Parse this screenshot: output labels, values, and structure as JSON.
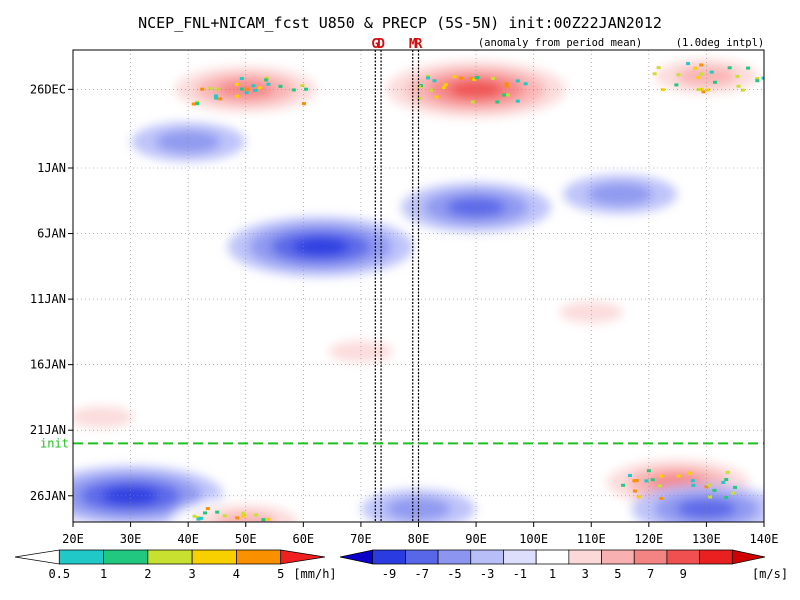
{
  "chart_data": {
    "type": "heatmap",
    "title": "NCEP_FNL+NICAM_fcst U850 & PRECP (5S-5N) init:00Z22JAN2012",
    "note_left": "(anomaly from period mean)",
    "note_right": "(1.0deg intpl)",
    "xlim": [
      20,
      140
    ],
    "x_ticks": [
      {
        "value": 20,
        "label": "20E"
      },
      {
        "value": 30,
        "label": "30E"
      },
      {
        "value": 40,
        "label": "40E"
      },
      {
        "value": 50,
        "label": "50E"
      },
      {
        "value": 60,
        "label": "60E"
      },
      {
        "value": 70,
        "label": "70E"
      },
      {
        "value": 80,
        "label": "80E"
      },
      {
        "value": 90,
        "label": "90E"
      },
      {
        "value": 100,
        "label": "100E"
      },
      {
        "value": 110,
        "label": "110E"
      },
      {
        "value": 120,
        "label": "120E"
      },
      {
        "value": 130,
        "label": "130E"
      },
      {
        "value": 140,
        "label": "140E"
      }
    ],
    "y_range_dates": [
      "2011-12-23",
      "2012-01-28"
    ],
    "y_ticks": [
      {
        "date": "2011-12-26",
        "label": "26DEC"
      },
      {
        "date": "2012-01-01",
        "label": "1JAN"
      },
      {
        "date": "2012-01-06",
        "label": "6JAN"
      },
      {
        "date": "2012-01-11",
        "label": "11JAN"
      },
      {
        "date": "2012-01-16",
        "label": "16JAN"
      },
      {
        "date": "2012-01-21",
        "label": "21JAN"
      },
      {
        "date": "2012-01-26",
        "label": "26JAN"
      }
    ],
    "markers": [
      {
        "label": "G",
        "lon": 72.5
      },
      {
        "label": "D",
        "lon": 73.5
      },
      {
        "label": "M",
        "lon": 79.0
      },
      {
        "label": "R",
        "lon": 80.0
      }
    ],
    "init_line": {
      "label": "init",
      "date": "2012-01-22",
      "color": "#20c020"
    },
    "u850_anomaly_features": [
      {
        "lon": 50,
        "date": "2011-12-26",
        "value": 7
      },
      {
        "lon": 90,
        "date": "2011-12-26",
        "value": 9
      },
      {
        "lon": 130,
        "date": "2011-12-25",
        "value": 5
      },
      {
        "lon": 40,
        "date": "2011-12-30",
        "value": -3
      },
      {
        "lon": 90,
        "date": "2012-01-04",
        "value": -5
      },
      {
        "lon": 63,
        "date": "2012-01-07",
        "value": -7
      },
      {
        "lon": 115,
        "date": "2012-01-03",
        "value": -3
      },
      {
        "lon": 110,
        "date": "2012-01-12",
        "value": 3
      },
      {
        "lon": 70,
        "date": "2012-01-15",
        "value": 3
      },
      {
        "lon": 25,
        "date": "2012-01-20",
        "value": 3
      },
      {
        "lon": 125,
        "date": "2012-01-25",
        "value": 7
      },
      {
        "lon": 30,
        "date": "2012-01-26",
        "value": -7
      },
      {
        "lon": 80,
        "date": "2012-01-27",
        "value": -3
      },
      {
        "lon": 130,
        "date": "2012-01-27",
        "value": -5
      },
      {
        "lon": 50,
        "date": "2012-01-28",
        "value": 5
      }
    ],
    "precip_colorbar": {
      "unit": "[mm/h]",
      "labels": [
        "0.5",
        "1",
        "2",
        "3",
        "4",
        "5"
      ],
      "colors": [
        "#ffffff",
        "#20c8c8",
        "#20c880",
        "#c8e030",
        "#f8d000",
        "#f89000",
        "#f02020"
      ]
    },
    "u850_colorbar": {
      "unit": "[m/s]",
      "labels": [
        "-9",
        "-7",
        "-5",
        "-3",
        "-1",
        "1",
        "3",
        "5",
        "7",
        "9"
      ],
      "colors": [
        "#0a00c8",
        "#2a3ce0",
        "#5866e8",
        "#8c96f0",
        "#b8bef8",
        "#dcdefc",
        "#ffffff",
        "#fcd8d8",
        "#f8b0b0",
        "#f48484",
        "#f05050",
        "#e82020",
        "#d00000"
      ]
    }
  }
}
